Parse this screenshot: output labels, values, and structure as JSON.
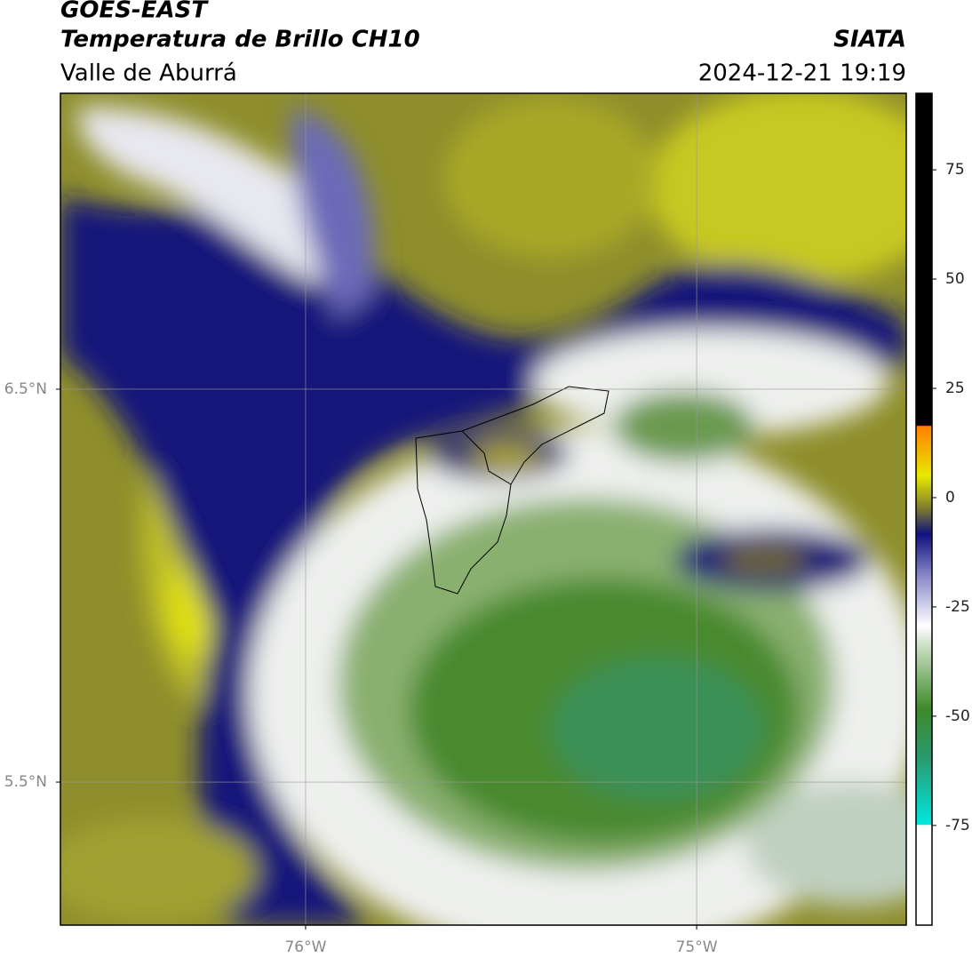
{
  "header": {
    "title": "GOES-EAST",
    "subtitle": "Temperatura de Brillo CH10",
    "region": "Valle de Aburrá",
    "source": "SIATA",
    "datetime": "2024-12-21 19:19"
  },
  "map": {
    "xlim": [
      -76.627,
      -74.464
    ],
    "ylim": [
      5.136,
      7.253
    ],
    "xticks": [
      {
        "value": -76,
        "label": "76°W"
      },
      {
        "value": -75,
        "label": "75°W"
      }
    ],
    "yticks": [
      {
        "value": 6.5,
        "label": "6.5°N"
      },
      {
        "value": 5.5,
        "label": "5.5°N"
      }
    ],
    "grid": true
  },
  "colorbar": {
    "lim": [
      -97.8,
      92.5
    ],
    "ticks": [
      75,
      50,
      25,
      0,
      -25,
      -50,
      -75
    ]
  }
}
